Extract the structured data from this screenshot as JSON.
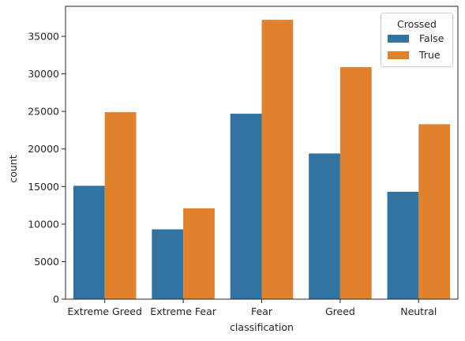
{
  "chart_data": {
    "type": "bar",
    "categories": [
      "Extreme Greed",
      "Extreme Fear",
      "Fear",
      "Greed",
      "Neutral"
    ],
    "series": [
      {
        "name": "False",
        "values": [
          15100,
          9300,
          24700,
          19400,
          14300
        ],
        "color": "#3274a1"
      },
      {
        "name": "True",
        "values": [
          24900,
          12100,
          37200,
          30900,
          23300
        ],
        "color": "#e1812c"
      }
    ],
    "xlabel": "classification",
    "ylabel": "count",
    "ylim": [
      0,
      39000
    ],
    "yticks": [
      0,
      5000,
      10000,
      15000,
      20000,
      25000,
      30000,
      35000
    ],
    "legend": {
      "title": "Crossed",
      "placement": "top-right"
    },
    "grid": false
  }
}
